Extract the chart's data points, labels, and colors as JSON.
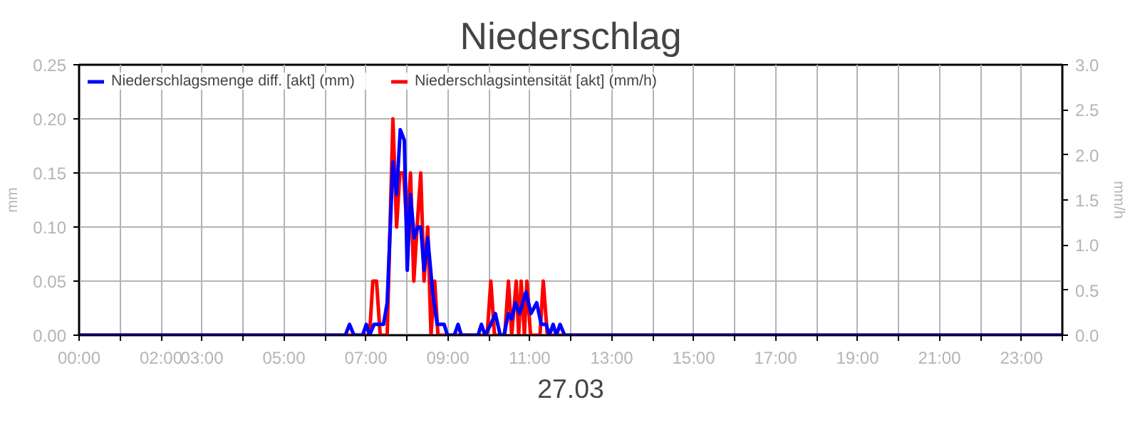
{
  "chart_data": {
    "type": "line",
    "title": "Niederschlag",
    "xlabel": "27.03",
    "ylabel": "mm",
    "y2label": "mm/h",
    "xlim": [
      0,
      24
    ],
    "xticks": [
      {
        "value": 0,
        "label": "00:00"
      },
      {
        "value": 1,
        "label": null
      },
      {
        "value": 2,
        "label": "02:00"
      },
      {
        "value": 3,
        "label": "03:00"
      },
      {
        "value": 4,
        "label": null
      },
      {
        "value": 5,
        "label": "05:00"
      },
      {
        "value": 6,
        "label": null
      },
      {
        "value": 7,
        "label": "07:00"
      },
      {
        "value": 8,
        "label": null
      },
      {
        "value": 9,
        "label": "09:00"
      },
      {
        "value": 10,
        "label": null
      },
      {
        "value": 11,
        "label": "11:00"
      },
      {
        "value": 12,
        "label": null
      },
      {
        "value": 13,
        "label": "13:00"
      },
      {
        "value": 14,
        "label": null
      },
      {
        "value": 15,
        "label": "15:00"
      },
      {
        "value": 16,
        "label": null
      },
      {
        "value": 17,
        "label": "17:00"
      },
      {
        "value": 18,
        "label": null
      },
      {
        "value": 19,
        "label": "19:00"
      },
      {
        "value": 20,
        "label": null
      },
      {
        "value": 21,
        "label": "21:00"
      },
      {
        "value": 22,
        "label": null
      },
      {
        "value": 23,
        "label": "23:00"
      },
      {
        "value": 24,
        "label": null
      }
    ],
    "ylim": [
      0,
      0.25
    ],
    "yticks": [
      {
        "value": 0,
        "label": "0.00"
      },
      {
        "value": 0.05,
        "label": "0.05"
      },
      {
        "value": 0.1,
        "label": "0.10"
      },
      {
        "value": 0.15,
        "label": "0.15"
      },
      {
        "value": 0.2,
        "label": "0.20"
      },
      {
        "value": 0.25,
        "label": "0.25"
      }
    ],
    "y2lim": [
      0,
      3
    ],
    "y2ticks": [
      {
        "value": 0,
        "label": "0.0"
      },
      {
        "value": 0.5,
        "label": "0.5"
      },
      {
        "value": 1,
        "label": "1.0"
      },
      {
        "value": 1.5,
        "label": "1.5"
      },
      {
        "value": 2,
        "label": "2.0"
      },
      {
        "value": 2.5,
        "label": "2.5"
      },
      {
        "value": 3,
        "label": "3.0"
      }
    ],
    "grid": true,
    "legend": "top left",
    "series": [
      {
        "name": "Niederschlagsmenge diff. [akt] (mm)",
        "color": "#0000ff",
        "x": [
          0,
          6.5,
          6.6,
          6.71,
          6.92,
          7.01,
          7.09,
          7.2,
          7.43,
          7.52,
          7.66,
          7.75,
          7.84,
          7.94,
          8.01,
          8.09,
          8.18,
          8.27,
          8.34,
          8.42,
          8.51,
          8.63,
          8.74,
          8.91,
          8.99,
          9.16,
          9.25,
          9.33,
          9.74,
          9.82,
          9.91,
          10.05,
          10.16,
          10.28,
          10.37,
          10.48,
          10.56,
          10.65,
          10.75,
          10.91,
          11.03,
          11.17,
          11.28,
          11.4,
          11.48,
          11.57,
          11.65,
          11.74,
          11.85,
          24
        ],
        "values": [
          0,
          0,
          0.01,
          0,
          0,
          0.01,
          0,
          0.01,
          0.01,
          0.03,
          0.16,
          0.13,
          0.19,
          0.18,
          0.06,
          0.13,
          0.09,
          0.1,
          0.1,
          0.06,
          0.09,
          0.04,
          0.01,
          0.01,
          0,
          0,
          0.01,
          0,
          0,
          0.01,
          0,
          0.01,
          0.02,
          0,
          0,
          0.02,
          0.015,
          0.03,
          0.02,
          0.04,
          0.02,
          0.03,
          0.01,
          0.01,
          0,
          0.01,
          0,
          0.01,
          0,
          0
        ]
      },
      {
        "name": "Niederschlagsintensität [akt] (mm/h)",
        "color": "#ff0000",
        "axis": "y2",
        "x": [
          0,
          7.09,
          7.17,
          7.26,
          7.35,
          7.52,
          7.66,
          7.75,
          7.83,
          7.92,
          8.0,
          8.09,
          8.17,
          8.25,
          8.34,
          8.42,
          8.51,
          8.59,
          8.68,
          8.76,
          9.96,
          10.05,
          10.14,
          10.39,
          10.48,
          10.56,
          10.67,
          10.73,
          10.79,
          10.87,
          10.93,
          11.02,
          11.25,
          11.33,
          11.43,
          24
        ],
        "values": [
          0,
          0,
          0.6,
          0.6,
          0,
          0,
          2.4,
          1.2,
          1.8,
          1.8,
          1.2,
          1.8,
          0.6,
          1.2,
          1.8,
          0.6,
          1.2,
          0,
          0.6,
          0,
          0,
          0.6,
          0,
          0,
          0.6,
          0,
          0.6,
          0,
          0.6,
          0,
          0.6,
          0,
          0,
          0.6,
          0,
          0
        ]
      }
    ]
  }
}
